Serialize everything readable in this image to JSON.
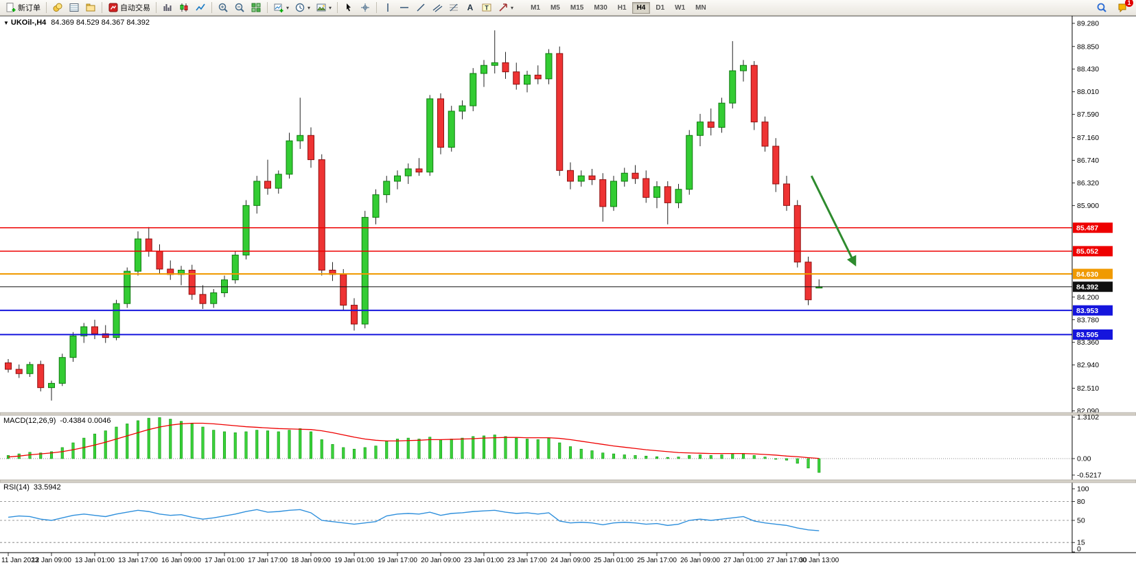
{
  "chart": {
    "marker": "▼",
    "symbol": "UKOil-,H4",
    "ohlc": "84.369 84.529 84.367 84.392"
  },
  "toolbar": {
    "groups": [
      {
        "items": [
          {
            "name": "new-order",
            "label": "新订单"
          }
        ]
      },
      {
        "items": [
          {
            "name": "market-watch"
          },
          {
            "name": "data-window"
          },
          {
            "name": "navigator"
          }
        ]
      },
      {
        "items": [
          {
            "name": "auto-trading",
            "label": "自动交易"
          }
        ]
      },
      {
        "items": [
          {
            "name": "bar-chart"
          },
          {
            "name": "candlestick-chart"
          },
          {
            "name": "line-chart"
          }
        ]
      },
      {
        "items": [
          {
            "name": "zoom-in"
          },
          {
            "name": "zoom-out"
          },
          {
            "name": "tile-windows"
          }
        ]
      },
      {
        "items": [
          {
            "name": "new-chart",
            "dropdown": true
          },
          {
            "name": "period",
            "dropdown": true
          },
          {
            "name": "template",
            "dropdown": true
          }
        ]
      },
      {
        "items": [
          {
            "name": "cursor"
          },
          {
            "name": "crosshair"
          }
        ]
      },
      {
        "items": [
          {
            "name": "vertical-line"
          },
          {
            "name": "horizontal-line"
          },
          {
            "name": "trendline"
          },
          {
            "name": "channel"
          },
          {
            "name": "fibonacci"
          },
          {
            "name": "text"
          },
          {
            "name": "text-label"
          },
          {
            "name": "shapes",
            "dropdown": true
          }
        ]
      }
    ],
    "timeframes": [
      "M1",
      "M5",
      "M15",
      "M30",
      "H1",
      "H4",
      "D1",
      "W1",
      "MN"
    ],
    "active_timeframe": "H4",
    "right": [
      {
        "name": "search"
      },
      {
        "name": "notifications",
        "badge": "1"
      }
    ]
  },
  "indicators": {
    "macd": {
      "label": "MACD(12,26,9)",
      "value": "-0.4384 0.0046",
      "axis": [
        {
          "v": 1.3102,
          "text": "1.3102"
        },
        {
          "v": 0,
          "text": "0.00"
        },
        {
          "v": -0.5217,
          "text": "-0.5217"
        }
      ]
    },
    "rsi": {
      "label": "RSI(14)",
      "value": "33.5942",
      "axis": [
        {
          "v": 100,
          "text": "100"
        },
        {
          "v": 80,
          "text": "80"
        },
        {
          "v": 50,
          "text": "50"
        },
        {
          "v": 15,
          "text": "15"
        },
        {
          "v": 0,
          "text": "0"
        }
      ]
    }
  },
  "price_axis": [
    {
      "price": 89.28,
      "text": "89.280"
    },
    {
      "price": 88.85,
      "text": "88.850"
    },
    {
      "price": 88.43,
      "text": "88.430"
    },
    {
      "price": 88.01,
      "text": "88.010"
    },
    {
      "price": 87.59,
      "text": "87.590"
    },
    {
      "price": 87.16,
      "text": "87.160"
    },
    {
      "price": 86.74,
      "text": "86.740"
    },
    {
      "price": 86.32,
      "text": "86.320"
    },
    {
      "price": 85.9,
      "text": "85.900"
    },
    {
      "price": 84.2,
      "text": "84.200"
    },
    {
      "price": 83.78,
      "text": "83.780"
    },
    {
      "price": 83.36,
      "text": "83.360"
    },
    {
      "price": 82.94,
      "text": "82.940"
    },
    {
      "price": 82.51,
      "text": "82.510"
    },
    {
      "price": 82.09,
      "text": "82.090"
    }
  ],
  "levels": [
    {
      "price": 85.487,
      "label": "85.487",
      "color": "#ee0000",
      "width": 1.5
    },
    {
      "price": 85.052,
      "label": "85.052",
      "color": "#ee0000",
      "width": 1.5
    },
    {
      "price": 84.63,
      "label": "84.630",
      "color": "#f09a00",
      "width": 2
    },
    {
      "price": 84.392,
      "label": "84.392",
      "color": "#101010",
      "width": 1
    },
    {
      "price": 83.953,
      "label": "83.953",
      "color": "#1515dd",
      "width": 2
    },
    {
      "price": 83.505,
      "label": "83.505",
      "color": "#1515dd",
      "width": 2
    }
  ],
  "annotation": {
    "type": "arrow",
    "from_i": 74.3,
    "from_price": 86.45,
    "to_i": 78.3,
    "to_price": 84.82,
    "color": "#2e8b2e"
  },
  "time_axis": [
    {
      "i": 0,
      "text": "11 Jan 2023"
    },
    {
      "i": 4,
      "text": "12 Jan 09:00"
    },
    {
      "i": 8,
      "text": "13 Jan 01:00"
    },
    {
      "i": 12,
      "text": "13 Jan 17:00"
    },
    {
      "i": 16,
      "text": "16 Jan 09:00"
    },
    {
      "i": 20,
      "text": "17 Jan 01:00"
    },
    {
      "i": 24,
      "text": "17 Jan 17:00"
    },
    {
      "i": 28,
      "text": "18 Jan 09:00"
    },
    {
      "i": 32,
      "text": "19 Jan 01:00"
    },
    {
      "i": 36,
      "text": "19 Jan 17:00"
    },
    {
      "i": 40,
      "text": "20 Jan 09:00"
    },
    {
      "i": 44,
      "text": "23 Jan 01:00"
    },
    {
      "i": 48,
      "text": "23 Jan 17:00"
    },
    {
      "i": 52,
      "text": "24 Jan 09:00"
    },
    {
      "i": 56,
      "text": "25 Jan 01:00"
    },
    {
      "i": 60,
      "text": "25 Jan 17:00"
    },
    {
      "i": 64,
      "text": "26 Jan 09:00"
    },
    {
      "i": 68,
      "text": "27 Jan 01:00"
    },
    {
      "i": 72,
      "text": "27 Jan 17:00"
    },
    {
      "i": 75,
      "text": "30 Jan 13:00"
    }
  ],
  "colors": {
    "bull": "#33cc33",
    "bull_border": "#0f7a0f",
    "bear": "#ee3333",
    "bear_border": "#8f0f0f",
    "wick": "#222222",
    "macd_hist": "#3bd23b",
    "macd_hist_border": "#0c960c",
    "macd_signal": "#ee0000",
    "rsi_line": "#2e8fdc"
  },
  "chart_data": [
    {
      "type": "candlestick",
      "symbol": "UKOil-",
      "timeframe": "H4",
      "current_ohlc": {
        "open": 84.369,
        "high": 84.529,
        "low": 84.367,
        "close": 84.392
      },
      "ylim": [
        82.09,
        89.28
      ],
      "ohlc": [
        [
          82.98,
          83.05,
          82.8,
          82.86
        ],
        [
          82.86,
          82.95,
          82.7,
          82.78
        ],
        [
          82.78,
          83.0,
          82.72,
          82.95
        ],
        [
          82.95,
          83.02,
          82.45,
          82.52
        ],
        [
          82.52,
          82.65,
          82.28,
          82.6
        ],
        [
          82.6,
          83.15,
          82.55,
          83.08
        ],
        [
          83.08,
          83.55,
          83.0,
          83.48
        ],
        [
          83.48,
          83.72,
          83.35,
          83.65
        ],
        [
          83.65,
          83.78,
          83.42,
          83.52
        ],
        [
          83.52,
          83.68,
          83.35,
          83.45
        ],
        [
          83.45,
          84.15,
          83.4,
          84.08
        ],
        [
          84.08,
          84.75,
          84.0,
          84.68
        ],
        [
          84.68,
          85.42,
          84.6,
          85.28
        ],
        [
          85.28,
          85.5,
          84.95,
          85.05
        ],
        [
          85.05,
          85.18,
          84.62,
          84.72
        ],
        [
          84.72,
          84.88,
          84.52,
          84.62
        ],
        [
          84.62,
          84.78,
          84.42,
          84.7
        ],
        [
          84.7,
          84.8,
          84.15,
          84.25
        ],
        [
          84.25,
          84.42,
          83.98,
          84.08
        ],
        [
          84.08,
          84.35,
          84.0,
          84.28
        ],
        [
          84.28,
          84.6,
          84.2,
          84.52
        ],
        [
          84.52,
          85.05,
          84.45,
          84.98
        ],
        [
          84.98,
          86.0,
          84.9,
          85.9
        ],
        [
          85.9,
          86.45,
          85.75,
          86.35
        ],
        [
          86.35,
          86.75,
          86.1,
          86.22
        ],
        [
          86.22,
          86.55,
          86.12,
          86.48
        ],
        [
          86.48,
          87.25,
          86.4,
          87.1
        ],
        [
          87.1,
          87.9,
          86.95,
          87.2
        ],
        [
          87.2,
          87.35,
          86.6,
          86.75
        ],
        [
          86.75,
          86.85,
          84.6,
          84.7
        ],
        [
          84.7,
          84.85,
          84.5,
          84.62
        ],
        [
          84.62,
          84.72,
          83.95,
          84.05
        ],
        [
          84.05,
          84.18,
          83.58,
          83.7
        ],
        [
          83.7,
          85.8,
          83.62,
          85.68
        ],
        [
          85.68,
          86.2,
          85.55,
          86.1
        ],
        [
          86.1,
          86.45,
          85.95,
          86.35
        ],
        [
          86.35,
          86.55,
          86.2,
          86.45
        ],
        [
          86.45,
          86.68,
          86.3,
          86.58
        ],
        [
          86.58,
          86.78,
          86.45,
          86.52
        ],
        [
          86.52,
          87.95,
          86.45,
          87.88
        ],
        [
          87.88,
          87.98,
          86.85,
          86.98
        ],
        [
          86.98,
          87.75,
          86.9,
          87.65
        ],
        [
          87.65,
          87.85,
          87.5,
          87.75
        ],
        [
          87.75,
          88.45,
          87.65,
          88.35
        ],
        [
          88.35,
          88.6,
          88.1,
          88.5
        ],
        [
          88.5,
          89.15,
          88.35,
          88.55
        ],
        [
          88.55,
          88.75,
          88.25,
          88.38
        ],
        [
          88.38,
          88.55,
          88.05,
          88.15
        ],
        [
          88.15,
          88.4,
          88.0,
          88.32
        ],
        [
          88.32,
          88.5,
          88.15,
          88.25
        ],
        [
          88.25,
          88.8,
          88.15,
          88.72
        ],
        [
          88.72,
          88.85,
          86.45,
          86.55
        ],
        [
          86.55,
          86.7,
          86.2,
          86.35
        ],
        [
          86.35,
          86.55,
          86.25,
          86.45
        ],
        [
          86.45,
          86.58,
          86.28,
          86.38
        ],
        [
          86.38,
          86.5,
          85.6,
          85.88
        ],
        [
          85.88,
          86.45,
          85.8,
          86.35
        ],
        [
          86.35,
          86.6,
          86.25,
          86.5
        ],
        [
          86.5,
          86.65,
          86.3,
          86.4
        ],
        [
          86.4,
          86.55,
          85.95,
          86.05
        ],
        [
          86.05,
          86.35,
          85.85,
          86.25
        ],
        [
          86.25,
          86.35,
          85.55,
          85.95
        ],
        [
          85.95,
          86.3,
          85.85,
          86.2
        ],
        [
          86.2,
          87.3,
          86.1,
          87.2
        ],
        [
          87.2,
          87.6,
          87.0,
          87.45
        ],
        [
          87.45,
          87.7,
          87.2,
          87.35
        ],
        [
          87.35,
          87.9,
          87.25,
          87.8
        ],
        [
          87.8,
          88.95,
          87.7,
          88.4
        ],
        [
          88.4,
          88.6,
          88.2,
          88.5
        ],
        [
          88.5,
          88.58,
          87.3,
          87.45
        ],
        [
          87.45,
          87.55,
          86.9,
          87.0
        ],
        [
          87.0,
          87.15,
          86.15,
          86.3
        ],
        [
          86.3,
          86.45,
          85.8,
          85.9
        ],
        [
          85.9,
          86.0,
          84.75,
          84.85
        ],
        [
          84.85,
          84.95,
          84.05,
          84.15
        ],
        [
          84.369,
          84.529,
          84.367,
          84.392
        ]
      ]
    },
    {
      "type": "bar",
      "name": "MACD(12,26,9)",
      "current_macd": -0.4384,
      "current_signal": 0.0046,
      "ylim": [
        -0.5217,
        1.3102
      ],
      "values": [
        0.1,
        0.15,
        0.2,
        0.18,
        0.22,
        0.35,
        0.5,
        0.65,
        0.78,
        0.88,
        1.0,
        1.1,
        1.2,
        1.28,
        1.3,
        1.25,
        1.18,
        1.1,
        1.0,
        0.9,
        0.85,
        0.82,
        0.85,
        0.9,
        0.88,
        0.85,
        0.9,
        0.95,
        0.85,
        0.6,
        0.45,
        0.35,
        0.3,
        0.35,
        0.4,
        0.55,
        0.62,
        0.65,
        0.62,
        0.68,
        0.6,
        0.62,
        0.65,
        0.7,
        0.72,
        0.75,
        0.7,
        0.65,
        0.62,
        0.6,
        0.65,
        0.5,
        0.38,
        0.3,
        0.25,
        0.18,
        0.15,
        0.12,
        0.1,
        0.08,
        0.06,
        0.04,
        0.05,
        0.1,
        0.12,
        0.1,
        0.12,
        0.14,
        0.15,
        0.1,
        0.05,
        0.0,
        -0.05,
        -0.15,
        -0.3,
        -0.4384
      ],
      "signal": [
        0.05,
        0.08,
        0.12,
        0.15,
        0.18,
        0.22,
        0.28,
        0.35,
        0.43,
        0.52,
        0.62,
        0.72,
        0.82,
        0.92,
        1.0,
        1.06,
        1.1,
        1.12,
        1.12,
        1.1,
        1.07,
        1.04,
        1.01,
        0.99,
        0.97,
        0.95,
        0.94,
        0.93,
        0.92,
        0.88,
        0.82,
        0.75,
        0.68,
        0.62,
        0.58,
        0.56,
        0.56,
        0.57,
        0.58,
        0.6,
        0.6,
        0.61,
        0.62,
        0.63,
        0.65,
        0.66,
        0.67,
        0.67,
        0.66,
        0.66,
        0.66,
        0.64,
        0.6,
        0.55,
        0.5,
        0.45,
        0.4,
        0.36,
        0.32,
        0.28,
        0.25,
        0.22,
        0.19,
        0.18,
        0.17,
        0.16,
        0.16,
        0.16,
        0.16,
        0.15,
        0.13,
        0.11,
        0.08,
        0.06,
        0.03,
        0.0046
      ]
    },
    {
      "type": "line",
      "name": "RSI(14)",
      "current": 33.5942,
      "ylim": [
        0,
        100
      ],
      "levels": [
        80,
        50,
        15
      ],
      "values": [
        55,
        57,
        56,
        52,
        50,
        54,
        58,
        60,
        58,
        56,
        60,
        63,
        66,
        64,
        60,
        58,
        59,
        55,
        52,
        54,
        57,
        60,
        64,
        67,
        63,
        64,
        66,
        67,
        62,
        50,
        48,
        46,
        44,
        46,
        48,
        57,
        60,
        61,
        60,
        63,
        58,
        61,
        62,
        64,
        65,
        66,
        63,
        61,
        62,
        60,
        62,
        49,
        46,
        47,
        46,
        43,
        46,
        47,
        46,
        44,
        45,
        42,
        44,
        50,
        52,
        50,
        52,
        54,
        56,
        49,
        46,
        44,
        42,
        38,
        35,
        33.59
      ]
    }
  ]
}
